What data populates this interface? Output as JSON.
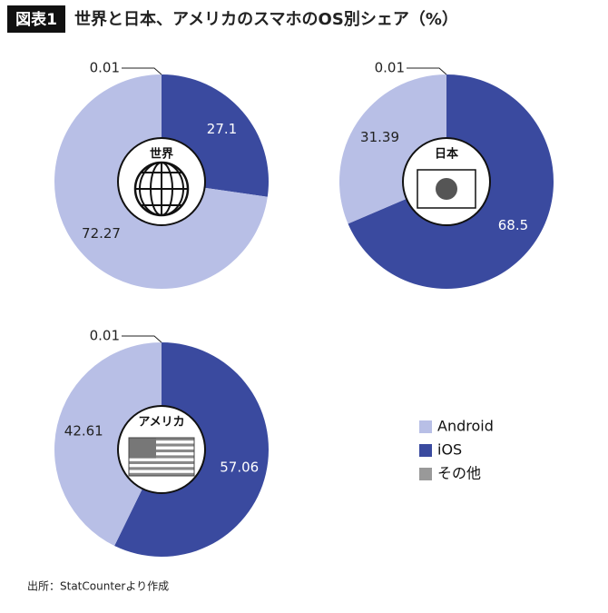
{
  "header": {
    "badge": "図表1",
    "title": "世界と日本、アメリカのスマホのOS別シェア（%）"
  },
  "legend": {
    "categories": [
      "Android",
      "iOS",
      "その他"
    ],
    "colors": [
      "#b8bfe6",
      "#3a4a9f",
      "#999999"
    ]
  },
  "chart_data": [
    {
      "type": "pie",
      "title": "世界",
      "values": [
        72.27,
        27.1,
        0.01
      ]
    },
    {
      "type": "pie",
      "title": "日本",
      "values": [
        31.39,
        68.5,
        0.01
      ]
    },
    {
      "type": "pie",
      "title": "アメリカ",
      "values": [
        42.61,
        57.06,
        0.01
      ]
    }
  ],
  "source": "出所：StatCounterより作成"
}
